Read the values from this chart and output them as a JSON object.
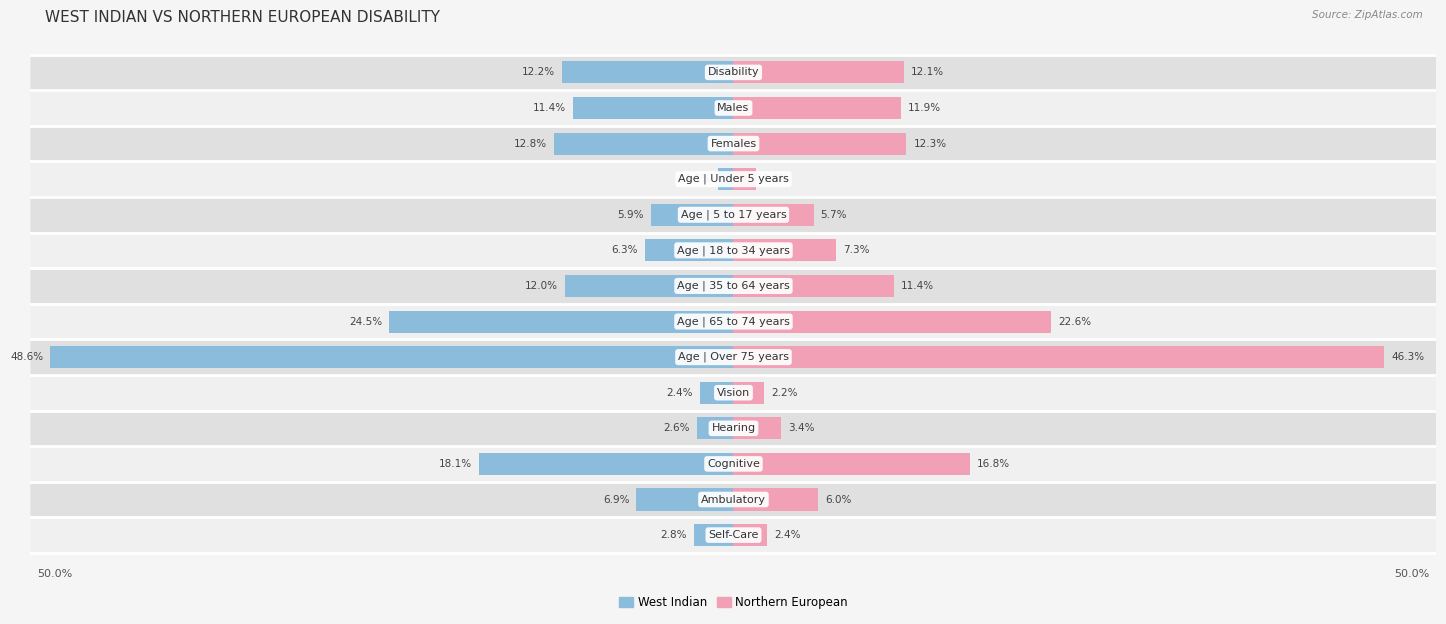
{
  "title": "WEST INDIAN VS NORTHERN EUROPEAN DISABILITY",
  "source": "Source: ZipAtlas.com",
  "categories": [
    "Disability",
    "Males",
    "Females",
    "Age | Under 5 years",
    "Age | 5 to 17 years",
    "Age | 18 to 34 years",
    "Age | 35 to 64 years",
    "Age | 65 to 74 years",
    "Age | Over 75 years",
    "Vision",
    "Hearing",
    "Cognitive",
    "Ambulatory",
    "Self-Care"
  ],
  "west_indian": [
    12.2,
    11.4,
    12.8,
    1.1,
    5.9,
    6.3,
    12.0,
    24.5,
    48.6,
    2.4,
    2.6,
    18.1,
    6.9,
    2.8
  ],
  "northern_european": [
    12.1,
    11.9,
    12.3,
    1.6,
    5.7,
    7.3,
    11.4,
    22.6,
    46.3,
    2.2,
    3.4,
    16.8,
    6.0,
    2.4
  ],
  "west_indian_color": "#8BBCDB",
  "northern_european_color": "#F2A0B5",
  "axis_max": 50.0,
  "row_bg_light": "#f0f0f0",
  "row_bg_dark": "#e0e0e0",
  "fig_bg": "#f5f5f5",
  "title_fontsize": 11,
  "label_fontsize": 8,
  "value_fontsize": 7.5,
  "legend_fontsize": 8.5
}
